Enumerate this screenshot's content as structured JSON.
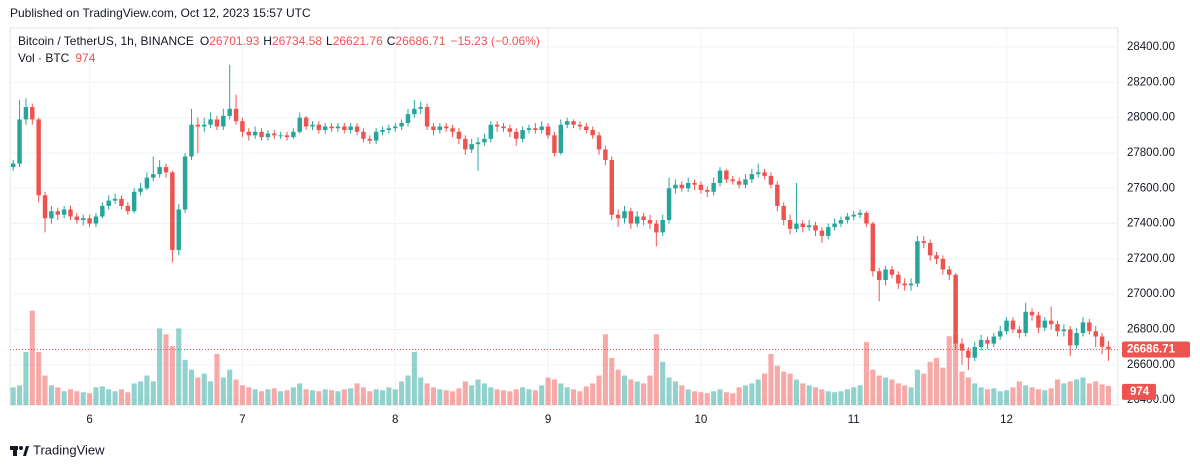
{
  "header": {
    "published": "Published on TradingView.com, Oct 12, 2023 15:57 UTC"
  },
  "footer": {
    "brand": "TradingView"
  },
  "chart_data": {
    "type": "candlestick",
    "symbol": "Bitcoin / TetherUS, 1h, BINANCE",
    "legend_labels": {
      "open": "O",
      "high": "H",
      "low": "L",
      "close": "C"
    },
    "change": "−15.23 (−0.06%)",
    "volume_label": "Vol · BTC",
    "up_color": "#26a69a",
    "down_color": "#ef5350",
    "xlim": [
      -0.5,
      173.5
    ],
    "ylim": [
      26372,
      28508
    ],
    "vlim": [
      0,
      19200
    ],
    "grid": true,
    "yticks": [
      {
        "value": 26400,
        "label": "26400.00"
      },
      {
        "value": 26600,
        "label": "26600.00"
      },
      {
        "value": 26800,
        "label": "26800.00"
      },
      {
        "value": 27000,
        "label": "27000.00"
      },
      {
        "value": 27200,
        "label": "27200.00"
      },
      {
        "value": 27400,
        "label": "27400.00"
      },
      {
        "value": 27600,
        "label": "27600.00"
      },
      {
        "value": 27800,
        "label": "27800.00"
      },
      {
        "value": 28000,
        "label": "28000.00"
      },
      {
        "value": 28200,
        "label": "28200.00"
      },
      {
        "value": 28400,
        "label": "28400.00"
      }
    ],
    "xticks": [
      {
        "value": 12,
        "label": "6"
      },
      {
        "value": 36,
        "label": "7"
      },
      {
        "value": 60,
        "label": "8"
      },
      {
        "value": 84,
        "label": "9"
      },
      {
        "value": 108,
        "label": "10"
      },
      {
        "value": 132,
        "label": "11"
      },
      {
        "value": 156,
        "label": "12"
      }
    ],
    "open": [
      27720,
      27740,
      27990,
      28060,
      27990,
      27560,
      27430,
      27470,
      27450,
      27480,
      27440,
      27420,
      27430,
      27400,
      27440,
      27500,
      27530,
      27540,
      27500,
      27470,
      27580,
      27600,
      27660,
      27680,
      27720,
      27690,
      27250,
      27480,
      27780,
      27960,
      27950,
      27960,
      27990,
      27950,
      28010,
      28050,
      27980,
      27920,
      27900,
      27920,
      27890,
      27910,
      27900,
      27900,
      27890,
      27920,
      28000,
      27950,
      27960,
      27930,
      27950,
      27940,
      27950,
      27930,
      27950,
      27920,
      27880,
      27870,
      27920,
      27930,
      27940,
      27950,
      27970,
      28020,
      28050,
      28060,
      27950,
      27930,
      27950,
      27940,
      27920,
      27880,
      27820,
      27850,
      27860,
      27880,
      27960,
      27950,
      27940,
      27920,
      27880,
      27930,
      27940,
      27930,
      27950,
      27900,
      27800,
      27960,
      27980,
      27960,
      27950,
      27930,
      27900,
      27820,
      27760,
      27450,
      27430,
      27470,
      27400,
      27440,
      27420,
      27400,
      27350,
      27420,
      27600,
      27620,
      27600,
      27630,
      27620,
      27590,
      27580,
      27630,
      27700,
      27650,
      27640,
      27620,
      27650,
      27680,
      27690,
      27670,
      27620,
      27500,
      27420,
      27370,
      27400,
      27380,
      27390,
      27360,
      27330,
      27380,
      27400,
      27420,
      27440,
      27450,
      27460,
      27400,
      27130,
      27080,
      27140,
      27110,
      27060,
      27050,
      27060,
      27300,
      27290,
      27220,
      27200,
      27140,
      27110,
      26720,
      26680,
      26640,
      26700,
      26740,
      26720,
      26760,
      26790,
      26850,
      26800,
      26780,
      26900,
      26880,
      26810,
      26850,
      26830,
      26790,
      26800,
      26710,
      26780,
      26840,
      26790,
      26760,
      26701.93
    ],
    "high": [
      27760,
      28100,
      28110,
      28080,
      28000,
      27580,
      27500,
      27490,
      27500,
      27500,
      27460,
      27450,
      27450,
      27460,
      27520,
      27560,
      27570,
      27560,
      27520,
      27600,
      27630,
      27690,
      27780,
      27760,
      27740,
      27700,
      27510,
      27800,
      28050,
      28000,
      28000,
      28030,
      28010,
      28050,
      28300,
      28130,
      28000,
      27940,
      27950,
      27940,
      27930,
      27930,
      27920,
      27920,
      27940,
      28030,
      28010,
      27980,
      27980,
      27970,
      27970,
      27970,
      27970,
      27970,
      27970,
      27940,
      27900,
      27940,
      27950,
      27960,
      27970,
      27990,
      28050,
      28100,
      28090,
      28080,
      27970,
      27970,
      27970,
      27960,
      27940,
      27900,
      27880,
      27890,
      27910,
      27980,
      27980,
      27970,
      27960,
      27940,
      27950,
      27960,
      27970,
      27980,
      27970,
      27920,
      27990,
      28000,
      27990,
      27980,
      27970,
      27950,
      27920,
      27840,
      27780,
      27480,
      27500,
      27490,
      27470,
      27460,
      27450,
      27420,
      27450,
      27660,
      27650,
      27640,
      27660,
      27650,
      27640,
      27610,
      27660,
      27720,
      27710,
      27670,
      27660,
      27680,
      27710,
      27740,
      27710,
      27690,
      27640,
      27520,
      27450,
      27630,
      27420,
      27420,
      27410,
      27380,
      27400,
      27430,
      27440,
      27460,
      27470,
      27480,
      27470,
      27410,
      27150,
      27160,
      27160,
      27130,
      27090,
      27090,
      27330,
      27330,
      27310,
      27240,
      27220,
      27160,
      27120,
      26750,
      26700,
      26730,
      26770,
      26760,
      26780,
      26820,
      26870,
      26870,
      26820,
      26950,
      26920,
      26900,
      26870,
      26930,
      26850,
      26830,
      26820,
      26810,
      26870,
      26860,
      26820,
      26780,
      26734.58
    ],
    "low": [
      27700,
      27720,
      27960,
      27960,
      27520,
      27350,
      27400,
      27420,
      27430,
      27420,
      27400,
      27390,
      27380,
      27380,
      27430,
      27480,
      27510,
      27480,
      27450,
      27460,
      27560,
      27590,
      27640,
      27660,
      27660,
      27180,
      27220,
      27460,
      27760,
      27800,
      27920,
      27940,
      27930,
      27930,
      27990,
      27960,
      27890,
      27870,
      27880,
      27870,
      27870,
      27880,
      27880,
      27870,
      27880,
      27910,
      27930,
      27930,
      27910,
      27910,
      27920,
      27920,
      27910,
      27910,
      27900,
      27860,
      27850,
      27850,
      27900,
      27910,
      27920,
      27930,
      27950,
      28000,
      28020,
      27930,
      27900,
      27910,
      27920,
      27890,
      27850,
      27790,
      27800,
      27700,
      27840,
      27860,
      27920,
      27920,
      27890,
      27840,
      27860,
      27910,
      27910,
      27910,
      27880,
      27780,
      27790,
      27940,
      27940,
      27930,
      27910,
      27880,
      27790,
      27730,
      27420,
      27380,
      27400,
      27370,
      27380,
      27390,
      27370,
      27270,
      27330,
      27400,
      27570,
      27580,
      27580,
      27590,
      27570,
      27550,
      27560,
      27610,
      27630,
      27620,
      27600,
      27600,
      27630,
      27660,
      27650,
      27600,
      27470,
      27390,
      27340,
      27350,
      27350,
      27360,
      27330,
      27290,
      27310,
      27360,
      27380,
      27400,
      27420,
      27430,
      27380,
      27100,
      26960,
      27050,
      27090,
      27030,
      27020,
      27020,
      27040,
      27260,
      27190,
      27170,
      27110,
      27080,
      26690,
      26600,
      26570,
      26620,
      26680,
      26690,
      26700,
      26740,
      26770,
      26780,
      26750,
      26760,
      26850,
      26780,
      26790,
      26800,
      26760,
      26760,
      26650,
      26690,
      26760,
      26770,
      26700,
      26660,
      26621.76
    ],
    "close": [
      27740,
      27990,
      28060,
      27990,
      27560,
      27430,
      27470,
      27450,
      27480,
      27440,
      27420,
      27430,
      27400,
      27440,
      27500,
      27530,
      27540,
      27500,
      27470,
      27580,
      27600,
      27660,
      27680,
      27720,
      27690,
      27250,
      27480,
      27780,
      27960,
      27950,
      27960,
      27990,
      27950,
      28010,
      28050,
      27980,
      27920,
      27900,
      27920,
      27890,
      27910,
      27900,
      27900,
      27890,
      27920,
      28000,
      27950,
      27960,
      27930,
      27950,
      27940,
      27950,
      27930,
      27950,
      27920,
      27880,
      27870,
      27920,
      27930,
      27940,
      27950,
      27970,
      28020,
      28050,
      28060,
      27950,
      27930,
      27950,
      27940,
      27920,
      27880,
      27820,
      27850,
      27860,
      27880,
      27960,
      27950,
      27940,
      27920,
      27880,
      27930,
      27940,
      27930,
      27950,
      27900,
      27800,
      27960,
      27980,
      27960,
      27950,
      27930,
      27900,
      27820,
      27760,
      27450,
      27430,
      27470,
      27400,
      27440,
      27420,
      27400,
      27350,
      27420,
      27600,
      27620,
      27600,
      27630,
      27620,
      27590,
      27580,
      27630,
      27700,
      27650,
      27640,
      27620,
      27650,
      27680,
      27690,
      27670,
      27620,
      27500,
      27420,
      27370,
      27400,
      27380,
      27390,
      27360,
      27330,
      27380,
      27400,
      27420,
      27440,
      27450,
      27460,
      27400,
      27130,
      27080,
      27140,
      27110,
      27060,
      27050,
      27060,
      27300,
      27290,
      27220,
      27200,
      27140,
      27110,
      26720,
      26680,
      26640,
      26700,
      26740,
      26720,
      26760,
      26790,
      26850,
      26800,
      26780,
      26900,
      26880,
      26810,
      26850,
      26830,
      26790,
      26800,
      26710,
      26780,
      26840,
      26790,
      26760,
      26701.93,
      26686.71
    ],
    "volume": [
      900,
      1000,
      2700,
      4800,
      2700,
      1500,
      1000,
      900,
      700,
      800,
      700,
      650,
      600,
      900,
      950,
      800,
      700,
      800,
      650,
      1100,
      1200,
      1500,
      1200,
      3900,
      3600,
      3000,
      3900,
      2300,
      1800,
      1400,
      1600,
      1200,
      2600,
      1400,
      1800,
      1300,
      1000,
      900,
      800,
      700,
      800,
      850,
      700,
      750,
      900,
      1100,
      800,
      750,
      700,
      800,
      750,
      700,
      800,
      850,
      1100,
      900,
      700,
      800,
      750,
      900,
      800,
      1200,
      1500,
      2700,
      1400,
      1100,
      900,
      800,
      750,
      700,
      850,
      1200,
      1000,
      1300,
      1100,
      900,
      800,
      750,
      700,
      800,
      900,
      800,
      750,
      1000,
      1400,
      1300,
      1100,
      900,
      800,
      700,
      950,
      1100,
      1500,
      3600,
      2400,
      1800,
      1500,
      1300,
      1200,
      1100,
      1500,
      3600,
      2200,
      1400,
      1200,
      1000,
      800,
      700,
      650,
      600,
      700,
      800,
      650,
      600,
      900,
      1000,
      1100,
      1300,
      1600,
      2600,
      2000,
      1700,
      1600,
      1300,
      1100,
      1000,
      900,
      800,
      700,
      650,
      700,
      800,
      900,
      1000,
      3200,
      1800,
      1500,
      1400,
      1300,
      1100,
      1000,
      900,
      1800,
      1600,
      2200,
      2400,
      1900,
      3500,
      3600,
      1700,
      1400,
      1100,
      900,
      800,
      850,
      700,
      750,
      900,
      1200,
      1000,
      900,
      800,
      750,
      850,
      1300,
      1100,
      1200,
      1300,
      1400,
      1100,
      1200,
      1050,
      974
    ]
  }
}
